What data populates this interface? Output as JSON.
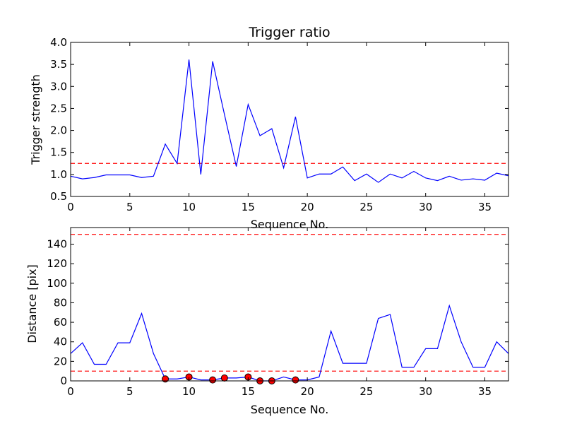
{
  "chart_data": [
    {
      "type": "line",
      "title": "Trigger ratio",
      "xlabel": "Sequence No.",
      "ylabel": "Trigger strength",
      "xlim": [
        0,
        37
      ],
      "ylim": [
        0.5,
        4.0
      ],
      "xticks": [
        0,
        5,
        10,
        15,
        20,
        25,
        30,
        35
      ],
      "xtick_labels": [
        "0",
        "5",
        "10",
        "15",
        "20",
        "25",
        "30",
        "35"
      ],
      "yticks": [
        0.5,
        1.0,
        1.5,
        2.0,
        2.5,
        3.0,
        3.5,
        4.0
      ],
      "ytick_labels": [
        "0.5",
        "1.0",
        "1.5",
        "2.0",
        "2.5",
        "3.0",
        "3.5",
        "4.0"
      ],
      "grid": false,
      "series": [
        {
          "color": "#0000ff",
          "x": [
            0,
            1,
            2,
            3,
            4,
            5,
            6,
            7,
            8,
            9,
            10,
            11,
            12,
            13,
            14,
            15,
            16,
            17,
            18,
            19,
            20,
            21,
            22,
            23,
            24,
            25,
            26,
            27,
            28,
            29,
            30,
            31,
            32,
            33,
            34,
            35,
            36,
            37
          ],
          "values": [
            0.96,
            0.9,
            0.93,
            0.99,
            0.99,
            0.99,
            0.93,
            0.96,
            1.69,
            1.25,
            3.61,
            1.0,
            3.57,
            2.36,
            1.18,
            2.59,
            1.88,
            2.04,
            1.15,
            2.31,
            0.92,
            1.01,
            1.01,
            1.17,
            0.86,
            1.01,
            0.82,
            1.01,
            0.92,
            1.07,
            0.92,
            0.86,
            0.96,
            0.87,
            0.9,
            0.87,
            1.03,
            0.97
          ]
        }
      ],
      "reference_lines": [
        {
          "y": 1.25,
          "color": "#ff0000",
          "style": "dashed"
        }
      ]
    },
    {
      "type": "line",
      "title": "",
      "xlabel": "Sequence No.",
      "ylabel": "Distance [pix]",
      "xlim": [
        0,
        37
      ],
      "ylim": [
        0,
        157
      ],
      "xticks": [
        0,
        5,
        10,
        15,
        20,
        25,
        30,
        35
      ],
      "xtick_labels": [
        "0",
        "5",
        "10",
        "15",
        "20",
        "25",
        "30",
        "35"
      ],
      "yticks": [
        0,
        20,
        40,
        60,
        80,
        100,
        120,
        140
      ],
      "ytick_labels": [
        "0",
        "20",
        "40",
        "60",
        "80",
        "100",
        "120",
        "140"
      ],
      "grid": false,
      "series": [
        {
          "color": "#0000ff",
          "x": [
            0,
            1,
            2,
            3,
            4,
            5,
            6,
            7,
            8,
            9,
            10,
            11,
            12,
            13,
            14,
            15,
            16,
            17,
            18,
            19,
            20,
            21,
            22,
            23,
            24,
            25,
            26,
            27,
            28,
            29,
            30,
            31,
            32,
            33,
            34,
            35,
            36,
            37
          ],
          "values": [
            28,
            39,
            17,
            17,
            39,
            39,
            69,
            28,
            2,
            2,
            4,
            1,
            1,
            3,
            3,
            4,
            0,
            0,
            4,
            1,
            1,
            4,
            51,
            18,
            18,
            18,
            64,
            68,
            14,
            14,
            33,
            33,
            77,
            40,
            14,
            14,
            40,
            28
          ]
        }
      ],
      "markers": {
        "color": "#ff0000",
        "x": [
          8,
          10,
          12,
          13,
          15,
          16,
          17,
          19
        ],
        "values": [
          2,
          4,
          1,
          3,
          4,
          0,
          0,
          1
        ]
      },
      "reference_lines": [
        {
          "y": 150,
          "color": "#ff0000",
          "style": "dashed"
        },
        {
          "y": 10,
          "color": "#ff0000",
          "style": "dashed"
        }
      ]
    }
  ]
}
